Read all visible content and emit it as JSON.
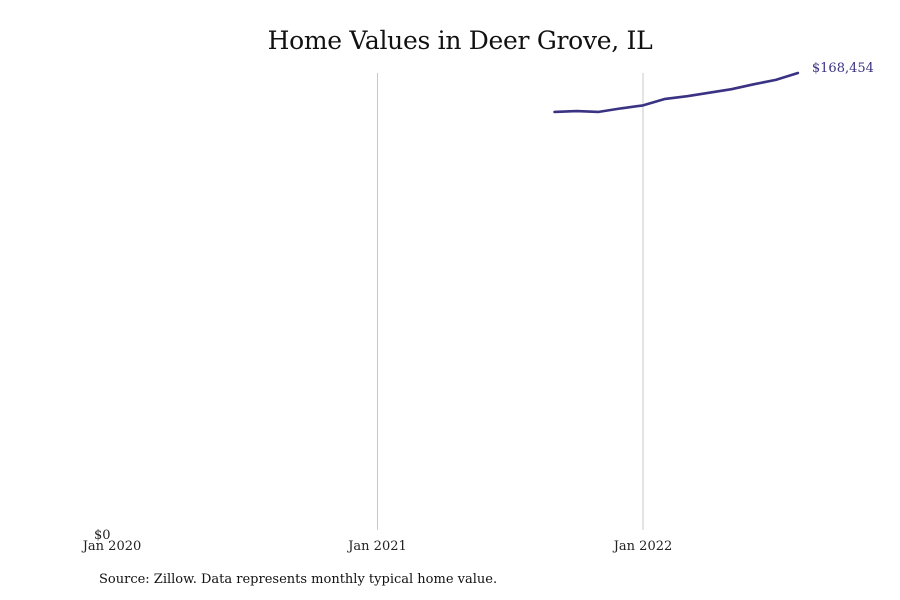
{
  "chart_data": {
    "type": "line",
    "title": "Home Values in Deer Grove, IL",
    "xlabel": "",
    "ylabel": "",
    "x_ticks": [
      "Jan 2020",
      "Jan 2021",
      "Jan 2022"
    ],
    "y_ticks": [
      "$0"
    ],
    "end_label": "$168,454",
    "x_range": [
      "2020-01",
      "2022-08"
    ],
    "ylim": [
      0,
      168454
    ],
    "grid": "vertical",
    "line_color": "#3a3283",
    "series": [
      {
        "x": [
          "2021-09",
          "2021-10",
          "2021-11",
          "2021-12",
          "2022-01",
          "2022-02",
          "2022-03",
          "2022-04",
          "2022-05",
          "2022-06",
          "2022-07",
          "2022-08"
        ],
        "values": [
          154100,
          154400,
          154100,
          155400,
          156500,
          158900,
          159900,
          161200,
          162500,
          164300,
          165900,
          168454
        ]
      }
    ]
  },
  "source_note": "Source: Zillow. Data represents monthly typical home value."
}
